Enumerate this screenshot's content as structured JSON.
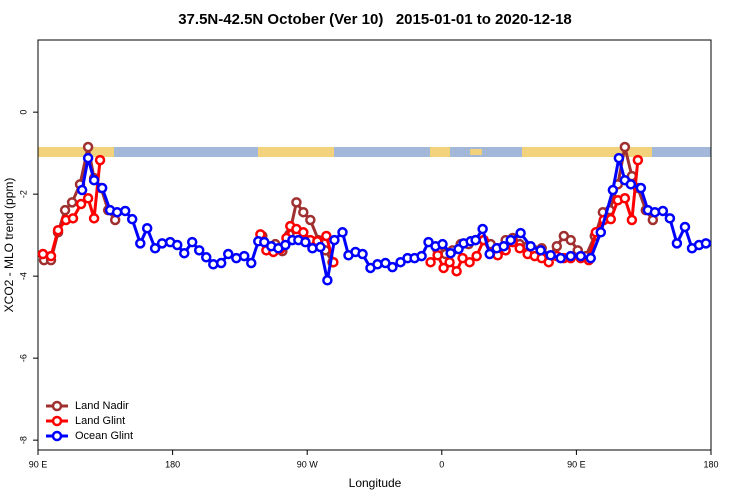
{
  "chart_data": {
    "type": "line",
    "title": "37.5N-42.5N October (Ver 10)   2015-01-01 to 2020-12-18",
    "x_label": "Longitude",
    "y_label": "XCO2 - MLO trend (ppm)",
    "xlim": [
      90,
      540
    ],
    "ylim": [
      -8.24,
      1.76
    ],
    "xticks": [
      {
        "value": 90,
        "label": "90 E"
      },
      180,
      {
        "value": 270,
        "label": "90 W"
      },
      {
        "value": 360,
        "label": "0"
      },
      {
        "value": 450,
        "label": "90 E"
      },
      {
        "value": 540,
        "label": "180"
      }
    ],
    "yticks": [
      0,
      -2,
      -4,
      -6,
      -8
    ],
    "legend": "bottom-left",
    "series": [
      {
        "name": "Land Nadir",
        "color": "#a03030",
        "x": [
          94.0,
          98.7,
          103.4,
          108.1,
          112.8,
          118.1,
          123.5,
          127.5,
          132.2,
          136.9,
          141.6,
          200,
          240.0,
          244.0,
          248.7,
          253.4,
          258.1,
          262.8,
          267.4,
          272.1,
          277.5,
          282.2,
          286.9,
          320,
          357.2,
          362.5,
          367.2,
          372.6,
          377.9,
          382.6,
          388.0,
          392.7,
          397.4,
          402.7,
          407.4,
          412.1,
          417.4,
          422.1,
          426.8,
          431.5,
          436.9,
          441.6,
          446.2,
          450.9,
          456.3,
          462.3,
          467.7,
          472.4,
          477.7,
          482.4,
          487.1,
          491.1,
          496.4,
          501.1
        ],
        "values": [
          -3.61,
          -3.61,
          -2.93,
          -2.39,
          -2.2,
          -1.76,
          -0.85,
          -1.61,
          -1.85,
          -2.39,
          -2.63,
          null,
          -3.02,
          -3.32,
          -3.22,
          -3.39,
          -2.98,
          -2.2,
          -2.44,
          -2.63,
          -3.12,
          -3.37,
          -3.66,
          null,
          -3.37,
          -3.46,
          -3.37,
          -3.22,
          -3.22,
          -3.12,
          -3.12,
          -3.22,
          -3.32,
          -3.12,
          -3.07,
          -3.22,
          -3.27,
          -3.37,
          -3.32,
          -3.51,
          -3.27,
          -3.02,
          -3.12,
          -3.37,
          -3.51,
          -3.02,
          -2.44,
          -2.39,
          -1.76,
          -0.85,
          -1.56,
          -1.85,
          -2.39,
          -2.63
        ]
      },
      {
        "name": "Land Glint",
        "color": "#ff0000",
        "x": [
          93.3,
          98.7,
          103.4,
          108.7,
          113.4,
          118.8,
          123.5,
          127.5,
          131.5,
          200,
          238.7,
          242.7,
          247.4,
          252.0,
          256.1,
          258.7,
          262.8,
          267.4,
          272.1,
          276.8,
          282.8,
          287.5,
          320,
          352.5,
          357.2,
          361.2,
          365.2,
          369.9,
          373.9,
          378.6,
          383.3,
          388.0,
          392.7,
          397.4,
          402.7,
          407.4,
          412.1,
          417.4,
          422.1,
          426.8,
          431.5,
          436.9,
          441.6,
          446.2,
          452.9,
          458.3,
          463.0,
          468.3,
          473.0,
          477.7,
          482.4,
          487.1,
          491.1
        ],
        "values": [
          -3.46,
          -3.51,
          -2.88,
          -2.63,
          -2.59,
          -2.24,
          -2.1,
          -2.59,
          -1.17,
          null,
          -2.98,
          -3.37,
          -3.41,
          -3.34,
          -3.07,
          -2.78,
          -2.85,
          -2.93,
          -3.12,
          -3.15,
          -3.02,
          -3.66,
          null,
          -3.66,
          -3.49,
          -3.8,
          -3.66,
          -3.88,
          -3.56,
          -3.66,
          -3.51,
          -3.12,
          -3.44,
          -3.49,
          -3.37,
          -3.17,
          -3.32,
          -3.46,
          -3.51,
          -3.56,
          -3.66,
          -3.51,
          -3.56,
          -3.56,
          -3.56,
          -3.61,
          -2.93,
          -2.63,
          -2.61,
          -2.15,
          -2.1,
          -2.63,
          -1.17
        ]
      },
      {
        "name": "Ocean Glint",
        "color": "#0000ff",
        "x": [
          119.5,
          123.5,
          127.5,
          132.9,
          138.2,
          142.9,
          148.3,
          153.0,
          158.4,
          163.0,
          168.3,
          173.0,
          178.4,
          183.1,
          187.8,
          193.1,
          197.8,
          202.5,
          207.2,
          212.5,
          217.2,
          222.6,
          227.9,
          232.6,
          237.3,
          241.3,
          246.0,
          250.7,
          255.4,
          260.1,
          264.1,
          268.8,
          273.5,
          278.8,
          283.5,
          288.2,
          293.6,
          297.6,
          302.3,
          307.0,
          312.3,
          317.0,
          322.3,
          327.0,
          332.4,
          337.1,
          341.8,
          346.5,
          351.1,
          355.8,
          360.5,
          365.9,
          371.2,
          374.6,
          379.3,
          382.6,
          387.3,
          392.0,
          396.7,
          401.4,
          406.1,
          412.7,
          419.4,
          426.1,
          432.8,
          439.5,
          446.2,
          452.9,
          459.6,
          466.3,
          474.4,
          478.4,
          482.4,
          486.4,
          493.1,
          497.8,
          502.5,
          507.8,
          512.5,
          517.2,
          522.6,
          527.3,
          532.0,
          536.6
        ],
        "values": [
          -1.9,
          -1.12,
          -1.66,
          -1.85,
          -2.39,
          -2.44,
          -2.41,
          -2.61,
          -3.2,
          -2.83,
          -3.32,
          -3.2,
          -3.17,
          -3.24,
          -3.44,
          -3.17,
          -3.37,
          -3.54,
          -3.71,
          -3.68,
          -3.46,
          -3.56,
          -3.51,
          -3.68,
          -3.15,
          -3.17,
          -3.27,
          -3.32,
          -3.24,
          -3.12,
          -3.12,
          -3.17,
          -3.32,
          -3.29,
          -4.1,
          -3.12,
          -2.93,
          -3.49,
          -3.41,
          -3.46,
          -3.8,
          -3.71,
          -3.68,
          -3.78,
          -3.66,
          -3.56,
          -3.56,
          -3.51,
          -3.17,
          -3.27,
          -3.22,
          -3.44,
          -3.34,
          -3.2,
          -3.15,
          -3.12,
          -2.85,
          -3.46,
          -3.32,
          -3.27,
          -3.12,
          -2.95,
          -3.27,
          -3.37,
          -3.49,
          -3.56,
          -3.51,
          -3.51,
          -3.56,
          -2.93,
          -1.9,
          -1.12,
          -1.66,
          -1.76,
          -1.85,
          -2.39,
          -2.44,
          -2.41,
          -2.59,
          -3.2,
          -2.8,
          -3.32,
          -3.24,
          -3.2
        ]
      }
    ]
  }
}
